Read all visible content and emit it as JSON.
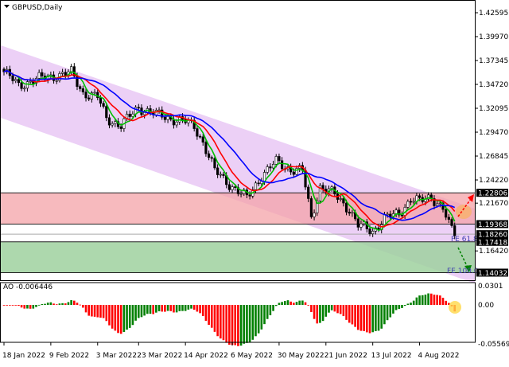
{
  "header": {
    "symbol_label": "GBPUSD,Daily"
  },
  "indicator": {
    "label": "AO -0.006446"
  },
  "colors": {
    "channel": "#e9c8f5",
    "resistance_zone": "#f4a3a8",
    "support_zone": "#9fd19f",
    "ma_fast": "#00c000",
    "ma_mid": "#ff0000",
    "ma_slow": "#0000ff",
    "ao_up": "#008000",
    "ao_down": "#ff0000",
    "highlight": "#ffd84a"
  },
  "chart_data": {
    "type": "candlestick",
    "symbol": "GBPUSD",
    "timeframe": "Daily",
    "ylim": [
      1.127,
      1.44
    ],
    "y_ticks": [
      "1.42595",
      "1.39970",
      "1.37345",
      "1.34720",
      "1.32095",
      "1.29470",
      "1.26845",
      "1.24220",
      "1.21670",
      "1.16420"
    ],
    "x_ticks": [
      "18 Jan 2022",
      "9 Feb 2022",
      "3 Mar 2022",
      "23 Mar 2022",
      "14 Apr 2022",
      "6 May 2022",
      "30 May 2022",
      "21 Jun 2022",
      "13 Jul 2022",
      "4 Aug 2022"
    ],
    "x_tick_dates": [
      "2022-01-18",
      "2022-02-09",
      "2022-03-03",
      "2022-03-23",
      "2022-04-14",
      "2022-05-06",
      "2022-05-30",
      "2022-06-21",
      "2022-07-13",
      "2022-08-04"
    ],
    "close_keypoints": [
      [
        "2022-01-18",
        1.361
      ],
      [
        "2022-01-25",
        1.346
      ],
      [
        "2022-02-01",
        1.352
      ],
      [
        "2022-02-09",
        1.356
      ],
      [
        "2022-02-18",
        1.36
      ],
      [
        "2022-02-24",
        1.338
      ],
      [
        "2022-03-03",
        1.333
      ],
      [
        "2022-03-08",
        1.31
      ],
      [
        "2022-03-15",
        1.302
      ],
      [
        "2022-03-23",
        1.322
      ],
      [
        "2022-04-01",
        1.313
      ],
      [
        "2022-04-14",
        1.306
      ],
      [
        "2022-04-19",
        1.301
      ],
      [
        "2022-04-22",
        1.284
      ],
      [
        "2022-04-28",
        1.252
      ],
      [
        "2022-05-06",
        1.235
      ],
      [
        "2022-05-13",
        1.222
      ],
      [
        "2022-05-20",
        1.247
      ],
      [
        "2022-05-27",
        1.262
      ],
      [
        "2022-06-03",
        1.254
      ],
      [
        "2022-06-09",
        1.252
      ],
      [
        "2022-06-14",
        1.2
      ],
      [
        "2022-06-17",
        1.235
      ],
      [
        "2022-06-24",
        1.226
      ],
      [
        "2022-07-01",
        1.21
      ],
      [
        "2022-07-06",
        1.192
      ],
      [
        "2022-07-13",
        1.186
      ],
      [
        "2022-07-19",
        1.2
      ],
      [
        "2022-07-26",
        1.205
      ],
      [
        "2022-08-01",
        1.222
      ],
      [
        "2022-08-04",
        1.218
      ],
      [
        "2022-08-10",
        1.224
      ],
      [
        "2022-08-16",
        1.211
      ],
      [
        "2022-08-18",
        1.193
      ],
      [
        "2022-08-22",
        1.181
      ]
    ],
    "levels": [
      {
        "price": 1.22806,
        "label": "1.22806"
      },
      {
        "price": 1.19368,
        "label": "1.19368"
      },
      {
        "price": 1.1826,
        "label": "1.18260"
      },
      {
        "price": 1.17418,
        "label": "1.17418"
      },
      {
        "price": 1.14032,
        "label": "1.14032"
      }
    ],
    "zones": [
      {
        "name": "resistance",
        "from": 1.19368,
        "to": 1.22806
      },
      {
        "name": "support",
        "from": 1.14032,
        "to": 1.17418
      }
    ],
    "fibo_labels": [
      "FE 61.8",
      "FE 100.0"
    ],
    "moving_averages": [
      {
        "color": "green"
      },
      {
        "color": "red"
      },
      {
        "color": "blue"
      }
    ],
    "ao": {
      "name": "AO",
      "current": -0.006446,
      "ylim": [
        -0.055697,
        0.0301
      ],
      "y_ticks": [
        "0.0301",
        "0.00",
        "-0.055697"
      ]
    }
  }
}
